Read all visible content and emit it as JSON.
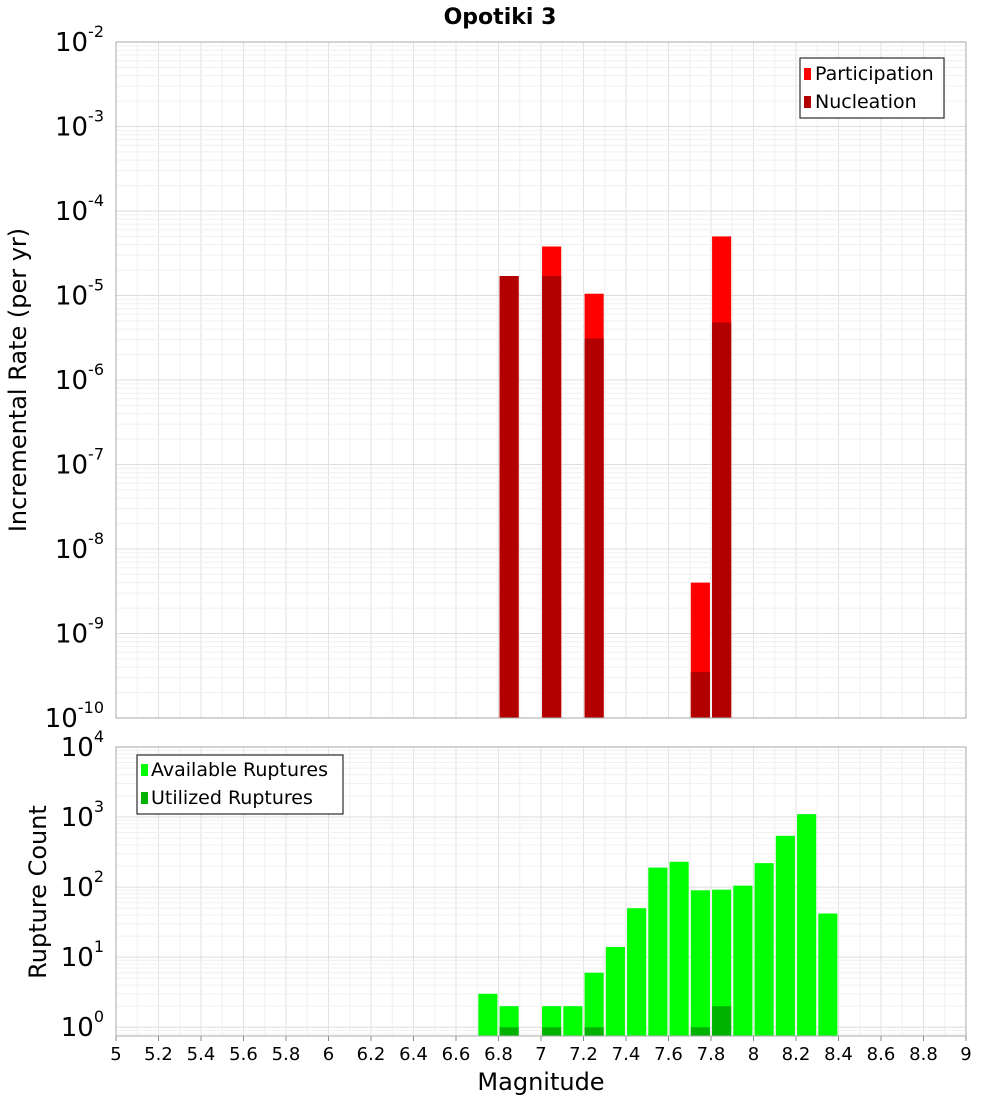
{
  "chart_data": [
    {
      "type": "bar",
      "title": "Opotiki 3",
      "xlabel": "",
      "ylabel": "Incremental Rate (per yr)",
      "yscale": "log",
      "ylim": [
        1e-10,
        0.01
      ],
      "xlim": [
        5,
        9
      ],
      "grid": true,
      "legend_position": "top-right",
      "bar_width": 0.09,
      "series": [
        {
          "name": "Participation",
          "color": "#ff0000",
          "x": [
            6.85,
            7.05,
            7.25,
            7.75,
            7.85
          ],
          "values": [
            1.7e-05,
            3.8e-05,
            1.05e-05,
            4e-09,
            5e-05
          ]
        },
        {
          "name": "Nucleation",
          "color": "#b20000",
          "x": [
            6.85,
            7.05,
            7.25,
            7.75,
            7.85
          ],
          "values": [
            1.7e-05,
            1.7e-05,
            3.1e-06,
            3.5e-10,
            4.8e-06
          ]
        }
      ],
      "ytick_bases": [
        "10",
        "10",
        "10",
        "10",
        "10",
        "10",
        "10",
        "10",
        "10"
      ],
      "ytick_exponents": [
        "-10",
        "-9",
        "-8",
        "-7",
        "-6",
        "-5",
        "-4",
        "-3",
        "-2"
      ]
    },
    {
      "type": "bar",
      "title": "",
      "xlabel": "Magnitude",
      "ylabel": "Rupture Count",
      "yscale": "log",
      "ylim": [
        0.75,
        10000
      ],
      "xlim": [
        5,
        9
      ],
      "grid": true,
      "legend_position": "top-left",
      "bar_width": 0.09,
      "series": [
        {
          "name": "Available Ruptures",
          "color": "#00ff00",
          "x": [
            6.75,
            6.85,
            7.05,
            7.15,
            7.25,
            7.35,
            7.45,
            7.55,
            7.65,
            7.75,
            7.85,
            7.95,
            8.05,
            8.15,
            8.25,
            8.35
          ],
          "values": [
            3,
            2,
            2,
            2,
            6,
            14,
            50,
            190,
            230,
            90,
            92,
            105,
            220,
            540,
            1100,
            42
          ]
        },
        {
          "name": "Utilized Ruptures",
          "color": "#00b200",
          "x": [
            6.85,
            7.05,
            7.25,
            7.75,
            7.85
          ],
          "values": [
            1,
            1,
            1,
            1,
            2
          ]
        }
      ],
      "ytick_bases": [
        "10",
        "10",
        "10",
        "10",
        "10"
      ],
      "ytick_exponents": [
        "0",
        "1",
        "2",
        "3",
        "4"
      ],
      "xtick_labels": [
        "5",
        "5.2",
        "5.4",
        "5.6",
        "5.8",
        "6",
        "6.2",
        "6.4",
        "6.6",
        "6.8",
        "7",
        "7.2",
        "7.4",
        "7.6",
        "7.8",
        "8",
        "8.2",
        "8.4",
        "8.6",
        "8.8",
        "9"
      ]
    }
  ]
}
